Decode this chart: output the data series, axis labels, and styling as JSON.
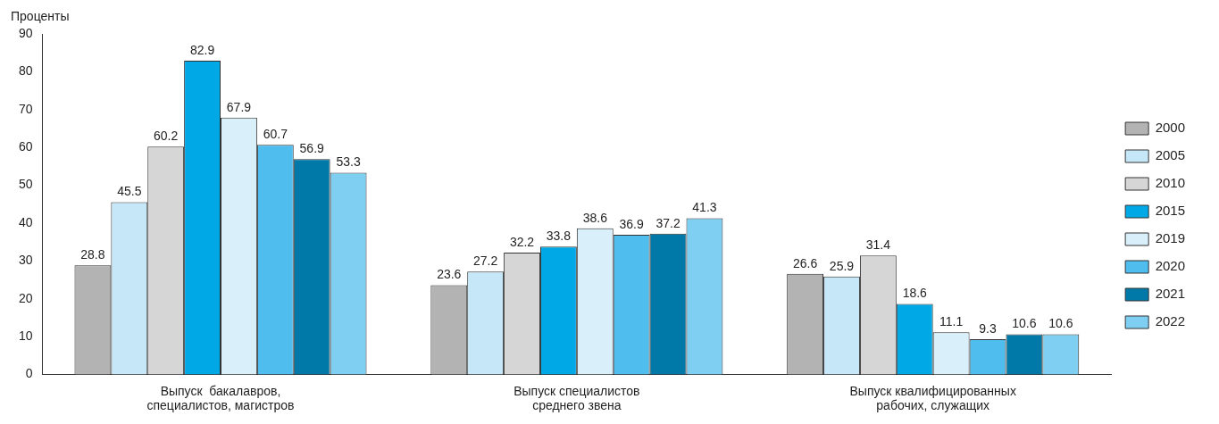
{
  "chart_data": {
    "type": "bar",
    "ylabel": "Проценты",
    "categories": [
      "Выпуск  бакалавров,\nспециалистов, магистров",
      "Выпуск специалистов\nсреднего звена",
      "Выпуск квалифицированных\nрабочих, служащих"
    ],
    "series": [
      {
        "name": "2000",
        "color": "#b3b3b3",
        "values": [
          28.8,
          23.6,
          26.6
        ]
      },
      {
        "name": "2005",
        "color": "#c6e7f8",
        "values": [
          45.5,
          27.2,
          25.9
        ]
      },
      {
        "name": "2010",
        "color": "#d6d6d6",
        "values": [
          60.2,
          32.2,
          31.4
        ]
      },
      {
        "name": "2015",
        "color": "#00a9e6",
        "values": [
          82.9,
          33.8,
          18.6
        ]
      },
      {
        "name": "2019",
        "color": "#d9f0fb",
        "values": [
          67.9,
          38.6,
          11.1
        ]
      },
      {
        "name": "2020",
        "color": "#4fbdee",
        "values": [
          60.7,
          36.9,
          9.3
        ]
      },
      {
        "name": "2021",
        "color": "#0079a8",
        "values": [
          56.9,
          37.2,
          10.6
        ]
      },
      {
        "name": "2022",
        "color": "#7fcff2",
        "values": [
          53.3,
          41.3,
          10.6
        ]
      }
    ],
    "ylim": [
      0,
      90
    ],
    "yticks": [
      0,
      10,
      20,
      30,
      40,
      50,
      60,
      70,
      80,
      90
    ],
    "grid": false,
    "legend": "right",
    "data_labels": true
  }
}
